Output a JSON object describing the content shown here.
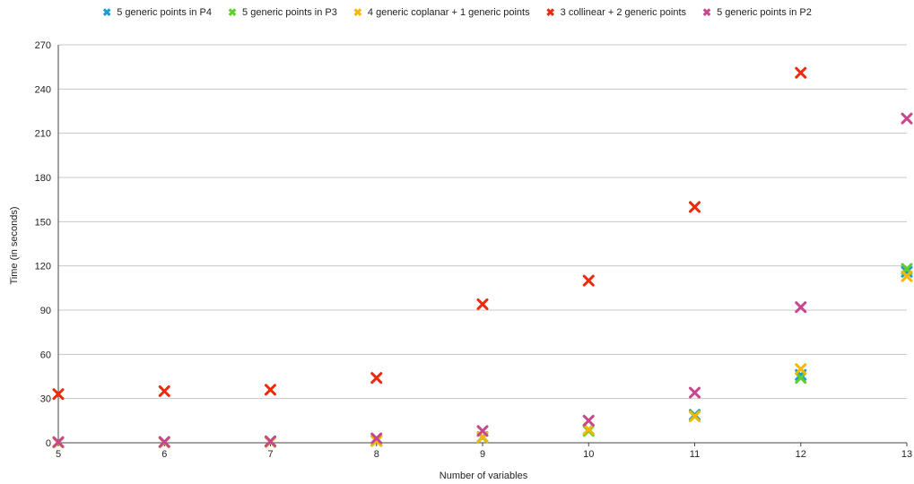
{
  "chart_data": {
    "type": "scatter",
    "title": "",
    "xlabel": "Number of variables",
    "ylabel": "Time (in seconds)",
    "xlim": [
      5,
      13
    ],
    "ylim": [
      0,
      270
    ],
    "x_ticks": [
      "5",
      "6",
      "7",
      "8",
      "9",
      "10",
      "11",
      "12",
      "13"
    ],
    "y_ticks": [
      "0",
      "30",
      "60",
      "90",
      "120",
      "150",
      "180",
      "210",
      "240",
      "270"
    ],
    "grid": "horizontal",
    "legend_position": "top-center",
    "series": [
      {
        "name": "5 generic points in P4",
        "color": "#1e9bd7",
        "points": [
          [
            5,
            0.3
          ],
          [
            6,
            0.4
          ],
          [
            7,
            0.8
          ],
          [
            8,
            1.5
          ],
          [
            9,
            4
          ],
          [
            10,
            9
          ],
          [
            11,
            19
          ],
          [
            12,
            46
          ],
          [
            13,
            116
          ]
        ]
      },
      {
        "name": "5 generic points in P3",
        "color": "#5fcf2d",
        "points": [
          [
            5,
            0.2
          ],
          [
            6,
            0.3
          ],
          [
            7,
            0.5
          ],
          [
            8,
            1.2
          ],
          [
            9,
            3.5
          ],
          [
            10,
            8
          ],
          [
            11,
            18
          ],
          [
            12,
            44
          ],
          [
            13,
            118
          ]
        ]
      },
      {
        "name": "4 generic coplanar + 1 generic points",
        "color": "#f5b800",
        "points": [
          [
            5,
            0.2
          ],
          [
            6,
            0.3
          ],
          [
            7,
            0.6
          ],
          [
            8,
            1.3
          ],
          [
            9,
            3.8
          ],
          [
            10,
            9
          ],
          [
            11,
            18
          ],
          [
            12,
            50
          ],
          [
            13,
            113
          ]
        ]
      },
      {
        "name": "3 collinear + 2 generic points",
        "color": "#ee2a0b",
        "points": [
          [
            5,
            33
          ],
          [
            6,
            35
          ],
          [
            7,
            36
          ],
          [
            8,
            44
          ],
          [
            9,
            94
          ],
          [
            10,
            110
          ],
          [
            11,
            160
          ],
          [
            12,
            251
          ],
          [
            13,
            null
          ]
        ]
      },
      {
        "name": "5 generic points in P2",
        "color": "#c7478f",
        "points": [
          [
            5,
            0.5
          ],
          [
            6,
            0.6
          ],
          [
            7,
            1
          ],
          [
            8,
            3
          ],
          [
            9,
            8
          ],
          [
            10,
            15
          ],
          [
            11,
            34
          ],
          [
            12,
            92
          ],
          [
            13,
            220
          ]
        ]
      }
    ]
  }
}
